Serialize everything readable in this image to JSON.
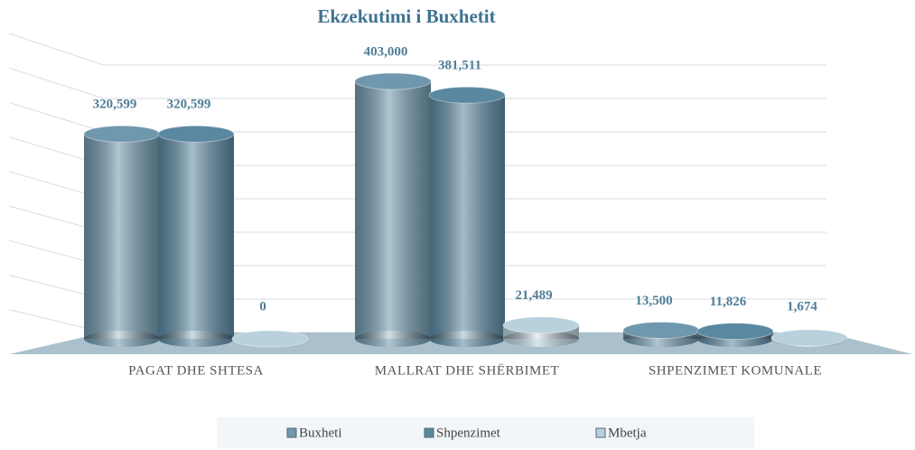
{
  "chart_data": {
    "type": "bar3d",
    "title": "Ekzekutimi i Buxhetit",
    "categories": [
      "PAGAT DHE SHTESA",
      "MALLRAT DHE SHËRBIMET",
      "SHPENZIMET KOMUNALE"
    ],
    "series": [
      {
        "name": "Buxheti",
        "color": "#6f97ad",
        "values": [
          320599,
          403000,
          13500
        ],
        "value_labels": [
          "320,599",
          "403,000",
          "13,500"
        ]
      },
      {
        "name": "Shpenzimet",
        "color": "#5b88a1",
        "values": [
          320599,
          381511,
          11826
        ],
        "value_labels": [
          "320,599",
          "381,511",
          "11,826"
        ]
      },
      {
        "name": "Mbetja",
        "color": "#b9d1dd",
        "values": [
          0,
          21489,
          1674
        ],
        "value_labels": [
          "0",
          "21,489",
          "1,674"
        ]
      }
    ],
    "grid": true,
    "legend": "bottom"
  }
}
